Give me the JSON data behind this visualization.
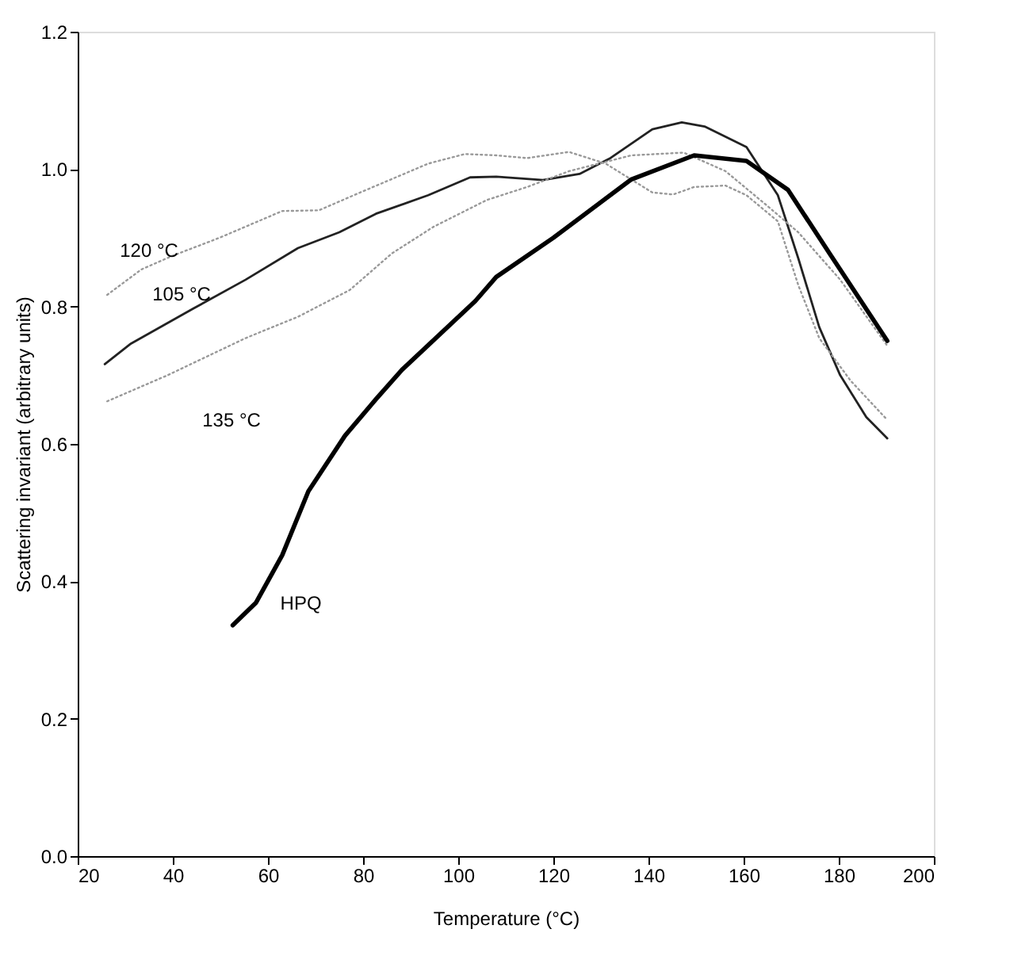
{
  "chart_data": {
    "type": "line",
    "xlabel": "Temperature (°C)",
    "ylabel": "Scattering invariant (arbitrary units)",
    "xlim": [
      20,
      200
    ],
    "xticks": [
      20,
      40,
      60,
      80,
      100,
      120,
      140,
      160,
      180,
      200
    ],
    "ylim": [
      0,
      1.2
    ],
    "yticks": [
      {
        "value": 0,
        "label": "0.0"
      },
      0.2,
      0.4,
      0.6,
      0.8,
      {
        "value": 1,
        "label": "1.0"
      },
      1.2
    ],
    "grid": false,
    "legend": false,
    "marker": "none",
    "series": [
      {
        "name": "105 °C",
        "color": "#222222",
        "line_style": "solid",
        "x": [
          25.7,
          31.2,
          44.3,
          55.3,
          66.3,
          75,
          82.7,
          93.7,
          102.5,
          108,
          117.8,
          125.5,
          132,
          140.8,
          147,
          151.8,
          160.6,
          167.2,
          171.5,
          175.9,
          180.3,
          185.8,
          190.2
        ],
        "values": [
          0.716,
          0.746,
          0.797,
          0.839,
          0.885,
          0.908,
          0.935,
          0.962,
          0.988,
          0.989,
          0.984,
          0.993,
          1.016,
          1.058,
          1.068,
          1.062,
          1.032,
          0.962,
          0.87,
          0.77,
          0.7,
          0.639,
          0.608
        ]
      },
      {
        "name": "120 °C",
        "color": "#999999",
        "line_style": "dotted",
        "x": [
          26.2,
          33.4,
          40,
          49.8,
          63,
          70.7,
          79.4,
          93.7,
          101.4,
          108,
          114.5,
          123.3,
          131,
          140.8,
          145.2,
          149.6,
          156.2,
          160.6,
          167.2,
          171.5,
          175.9,
          182.5,
          190.2
        ],
        "values": [
          0.817,
          0.854,
          0.874,
          0.9,
          0.939,
          0.94,
          0.966,
          1.008,
          1.022,
          1.02,
          1.016,
          1.025,
          1.008,
          0.966,
          0.963,
          0.974,
          0.976,
          0.962,
          0.924,
          0.831,
          0.754,
          0.692,
          0.635
        ]
      },
      {
        "name": "135 °C",
        "color": "#999999",
        "line_style": "dotted",
        "x": [
          26.2,
          38.9,
          55.3,
          66.3,
          77.2,
          86,
          94.8,
          106,
          114.5,
          123.3,
          136.4,
          147.4,
          156.2,
          164.9,
          171.5,
          180.3,
          190.2
        ],
        "values": [
          0.662,
          0.7,
          0.754,
          0.785,
          0.824,
          0.877,
          0.916,
          0.955,
          0.974,
          0.997,
          1.02,
          1.024,
          0.997,
          0.947,
          0.908,
          0.839,
          0.743
        ]
      },
      {
        "name": "HPQ",
        "color": "#000000",
        "line_style": "solid",
        "x": [
          52.6,
          57.5,
          63,
          68.5,
          76.2,
          82.7,
          88.2,
          103.6,
          108,
          120,
          136.4,
          149.6,
          160.6,
          169.3,
          178.1,
          190.2
        ],
        "values": [
          0.336,
          0.369,
          0.438,
          0.531,
          0.612,
          0.665,
          0.708,
          0.808,
          0.843,
          0.9,
          0.985,
          1.02,
          1.012,
          0.97,
          0.877,
          0.75
        ]
      }
    ]
  }
}
